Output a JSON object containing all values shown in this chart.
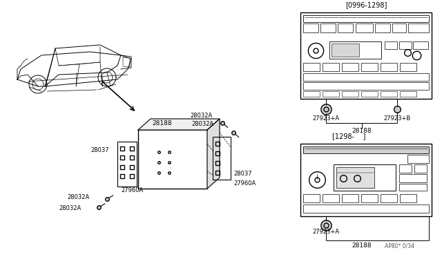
{
  "bg_color": "#ffffff",
  "line_color": "#000000",
  "part_labels": {
    "28188_top": "28188",
    "28037_left": "28037",
    "28037_right": "28037",
    "27960A_left": "27960A",
    "27960A_right": "27960A",
    "28032A_1": "28032A",
    "28032A_2": "28032A",
    "28032A_3": "28032A",
    "28032A_top": "28032A",
    "28032A_topright": "28032A",
    "radio1_label": "[0996-1298]",
    "radio2_label": "[1298-    ]",
    "27923A_r1": "27923+A",
    "27923B_r1": "27923+B",
    "28188_r1": "28188",
    "27923A_r2": "27923+A",
    "28188_r2": "28188",
    "footnote": "AP80* 0/34"
  }
}
